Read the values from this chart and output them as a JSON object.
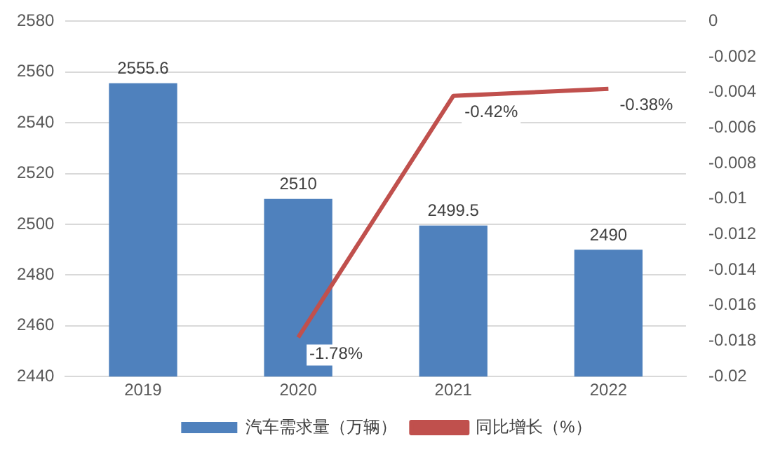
{
  "chart_data": {
    "type": "bar",
    "categories": [
      "2019",
      "2020",
      "2021",
      "2022"
    ],
    "series": [
      {
        "name": "汽车需求量（万辆）",
        "color": "#4f81bd",
        "values": [
          2555.6,
          2510,
          2499.5,
          2490
        ],
        "value_labels": [
          "2555.6",
          "2510",
          "2499.5",
          "2490"
        ]
      },
      {
        "name": "同比增长（%）",
        "type": "line",
        "axis": "y2",
        "color": "#c0504d",
        "values": [
          null,
          -0.0178,
          -0.0042,
          -0.0038
        ],
        "value_labels": [
          null,
          "-1.78%",
          "-0.42%",
          "-0.38%"
        ]
      }
    ],
    "ylim": [
      2440,
      2580
    ],
    "yticks": [
      2440,
      2460,
      2480,
      2500,
      2520,
      2540,
      2560,
      2580
    ],
    "y2lim": [
      -0.02,
      0
    ],
    "y2ticks": [
      -0.02,
      -0.018,
      -0.016,
      -0.014,
      -0.012,
      -0.01,
      -0.008,
      -0.006,
      -0.004,
      -0.002,
      0
    ],
    "grid": "y",
    "legend": "bottom",
    "marker": "none",
    "line_style": "solid"
  }
}
